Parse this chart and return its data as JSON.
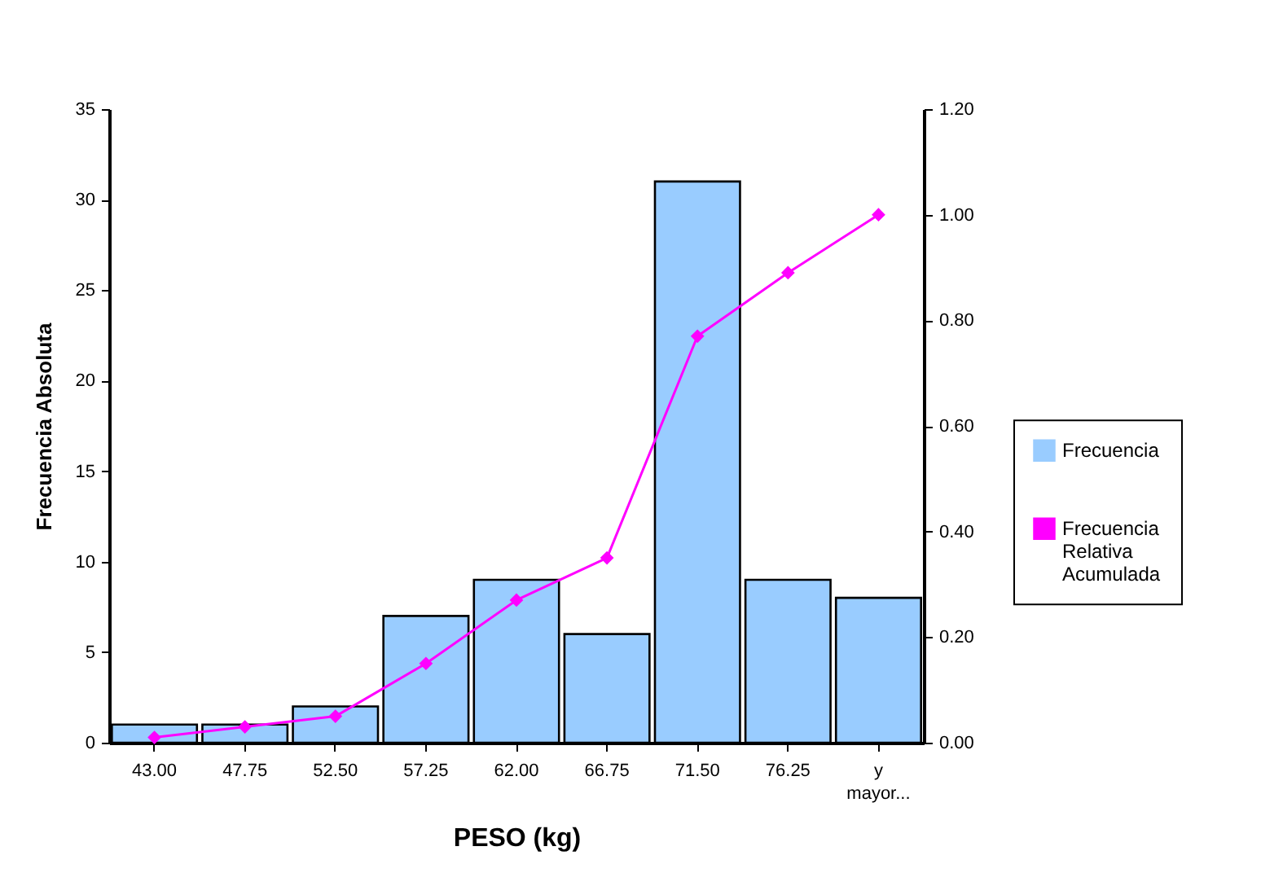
{
  "chart_data": {
    "type": "bar",
    "xlabel": "PESO (kg)",
    "ylabel": "Frecuencia Absoluta",
    "categories": [
      "43.00",
      "47.75",
      "52.50",
      "57.25",
      "62.00",
      "66.75",
      "71.50",
      "76.25",
      "y mayor..."
    ],
    "series": [
      {
        "name": "Frecuencia",
        "color": "#99ccff",
        "values": [
          1,
          1,
          2,
          7,
          9,
          6,
          31,
          9,
          8
        ]
      },
      {
        "name": "Frecuencia Relativa Acumulada",
        "type": "line",
        "axis": "y2",
        "color": "#ff00ff",
        "marker": "diamond",
        "values": [
          0.01,
          0.03,
          0.05,
          0.15,
          0.27,
          0.35,
          0.77,
          0.89,
          1.0
        ]
      }
    ],
    "ylim": [
      0,
      35
    ],
    "yticks": [
      0,
      5,
      10,
      15,
      20,
      25,
      30,
      35
    ],
    "y2lim": [
      0,
      1.2
    ],
    "y2ticks": [
      {
        "value": 0,
        "label": "0.00"
      },
      {
        "value": 0.2,
        "label": "0.20"
      },
      {
        "value": 0.4,
        "label": "0.40"
      },
      {
        "value": 0.6,
        "label": "0.60"
      },
      {
        "value": 0.8,
        "label": "0.80"
      },
      {
        "value": 1,
        "label": "1.00"
      },
      {
        "value": 1.2,
        "label": "1.20"
      }
    ],
    "grid": false,
    "legend": "right"
  }
}
